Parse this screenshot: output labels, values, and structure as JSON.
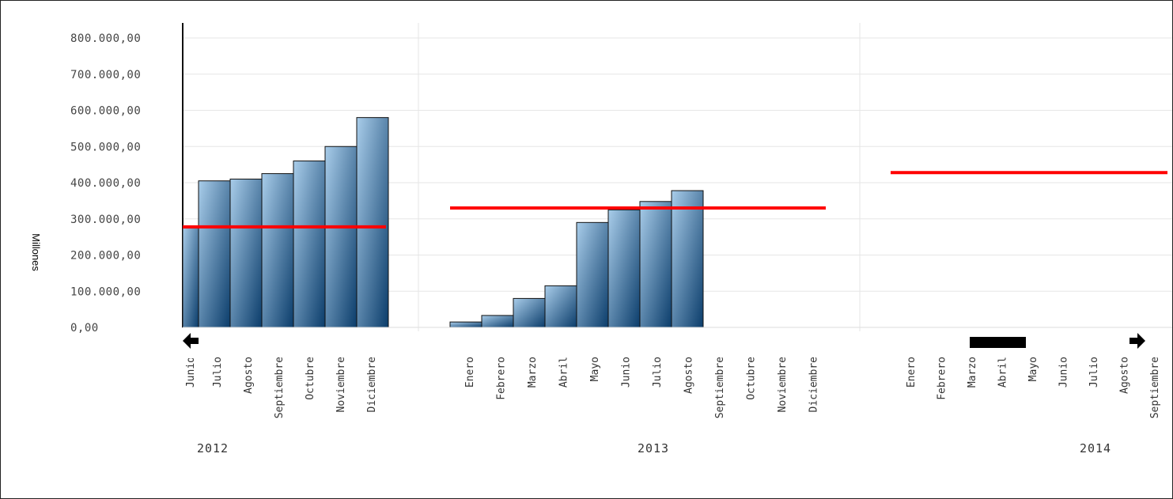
{
  "chart_data": {
    "type": "bar",
    "ylabel": "Millones",
    "ylim": [
      0,
      800000
    ],
    "y_ticks": [
      "0,00",
      "100.000,00",
      "200.000,00",
      "300.000,00",
      "400.000,00",
      "500.000,00",
      "600.000,00",
      "700.000,00",
      "800.000,00"
    ],
    "grid": true,
    "colors": {
      "bar_top": "#a9cdea",
      "bar_bottom": "#0b3d6b",
      "bar_edge": "#111111",
      "target_line": "#ff0000",
      "grid": "#e6e6e6"
    },
    "groups": [
      {
        "year": "2012",
        "months": [
          "Junio",
          "Julio",
          "Agosto",
          "Septiembre",
          "Octubre",
          "Noviembre",
          "Diciembre"
        ],
        "values": [
          275000,
          405000,
          410000,
          425000,
          460000,
          500000,
          580000
        ],
        "target": 278000
      },
      {
        "year": "2013",
        "months": [
          "Enero",
          "Febrero",
          "Marzo",
          "Abril",
          "Mayo",
          "Junio",
          "Julio",
          "Agosto",
          "Septiembre",
          "Octubre",
          "Noviembre",
          "Diciembre"
        ],
        "values": [
          15000,
          33000,
          80000,
          115000,
          290000,
          325000,
          348000,
          378000,
          null,
          null,
          null,
          null
        ],
        "target": 330000
      },
      {
        "year": "2014",
        "months": [
          "Enero",
          "Febrero",
          "Marzo",
          "Abril",
          "Mayo",
          "Junio",
          "Julio",
          "Agosto",
          "Septiembre"
        ],
        "values": [
          null,
          null,
          null,
          null,
          null,
          null,
          null,
          null,
          null
        ],
        "target": 428000
      }
    ],
    "navigation": {
      "left_arrow_icon": "arrow-left-icon",
      "right_arrow_icon": "arrow-right-icon",
      "scroll_thumb": "scrollbar-thumb"
    }
  }
}
